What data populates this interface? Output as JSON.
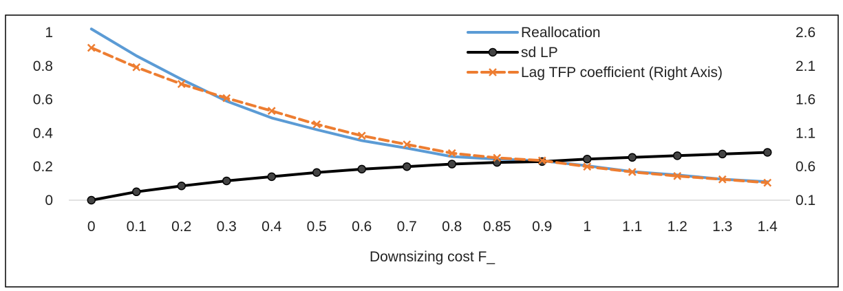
{
  "caption": "",
  "chart_data": {
    "type": "line",
    "xlabel": "Downsizing cost F_",
    "categories": [
      "0",
      "0.1",
      "0.2",
      "0.3",
      "0.4",
      "0.5",
      "0.6",
      "0.7",
      "0.8",
      "0.85",
      "0.9",
      "1",
      "1.1",
      "1.2",
      "1.3",
      "1.4"
    ],
    "y_left": {
      "ylim": [
        0,
        1
      ],
      "ticks": [
        "0",
        "0.2",
        "0.4",
        "0.6",
        "0.8",
        "1"
      ]
    },
    "y_right": {
      "ylim": [
        0.1,
        2.6
      ],
      "ticks": [
        "0.1",
        "0.6",
        "1.1",
        "1.6",
        "2.1",
        "2.6"
      ]
    },
    "grid": false,
    "legend_position": "top-right",
    "series": [
      {
        "name": "Reallocation",
        "axis": "left",
        "color": "#5B9BD5",
        "style": "solid",
        "marker": "none",
        "values": [
          1.02,
          0.86,
          0.72,
          0.59,
          0.49,
          0.42,
          0.355,
          0.31,
          0.26,
          0.245,
          0.235,
          0.205,
          0.17,
          0.15,
          0.125,
          0.11
        ]
      },
      {
        "name": "sd LP",
        "axis": "left",
        "color": "#000000",
        "style": "solid",
        "marker": "circle",
        "values": [
          0.0,
          0.05,
          0.085,
          0.115,
          0.14,
          0.165,
          0.185,
          0.2,
          0.215,
          0.225,
          0.23,
          0.245,
          0.255,
          0.265,
          0.275,
          0.285
        ]
      },
      {
        "name": "Lag TFP coefficient (Right Axis)",
        "axis": "right",
        "color": "#ED7D31",
        "style": "dashed",
        "marker": "x",
        "values": [
          2.37,
          2.08,
          1.83,
          1.62,
          1.43,
          1.23,
          1.06,
          0.93,
          0.8,
          0.73,
          0.69,
          0.6,
          0.52,
          0.46,
          0.41,
          0.36
        ]
      }
    ]
  }
}
